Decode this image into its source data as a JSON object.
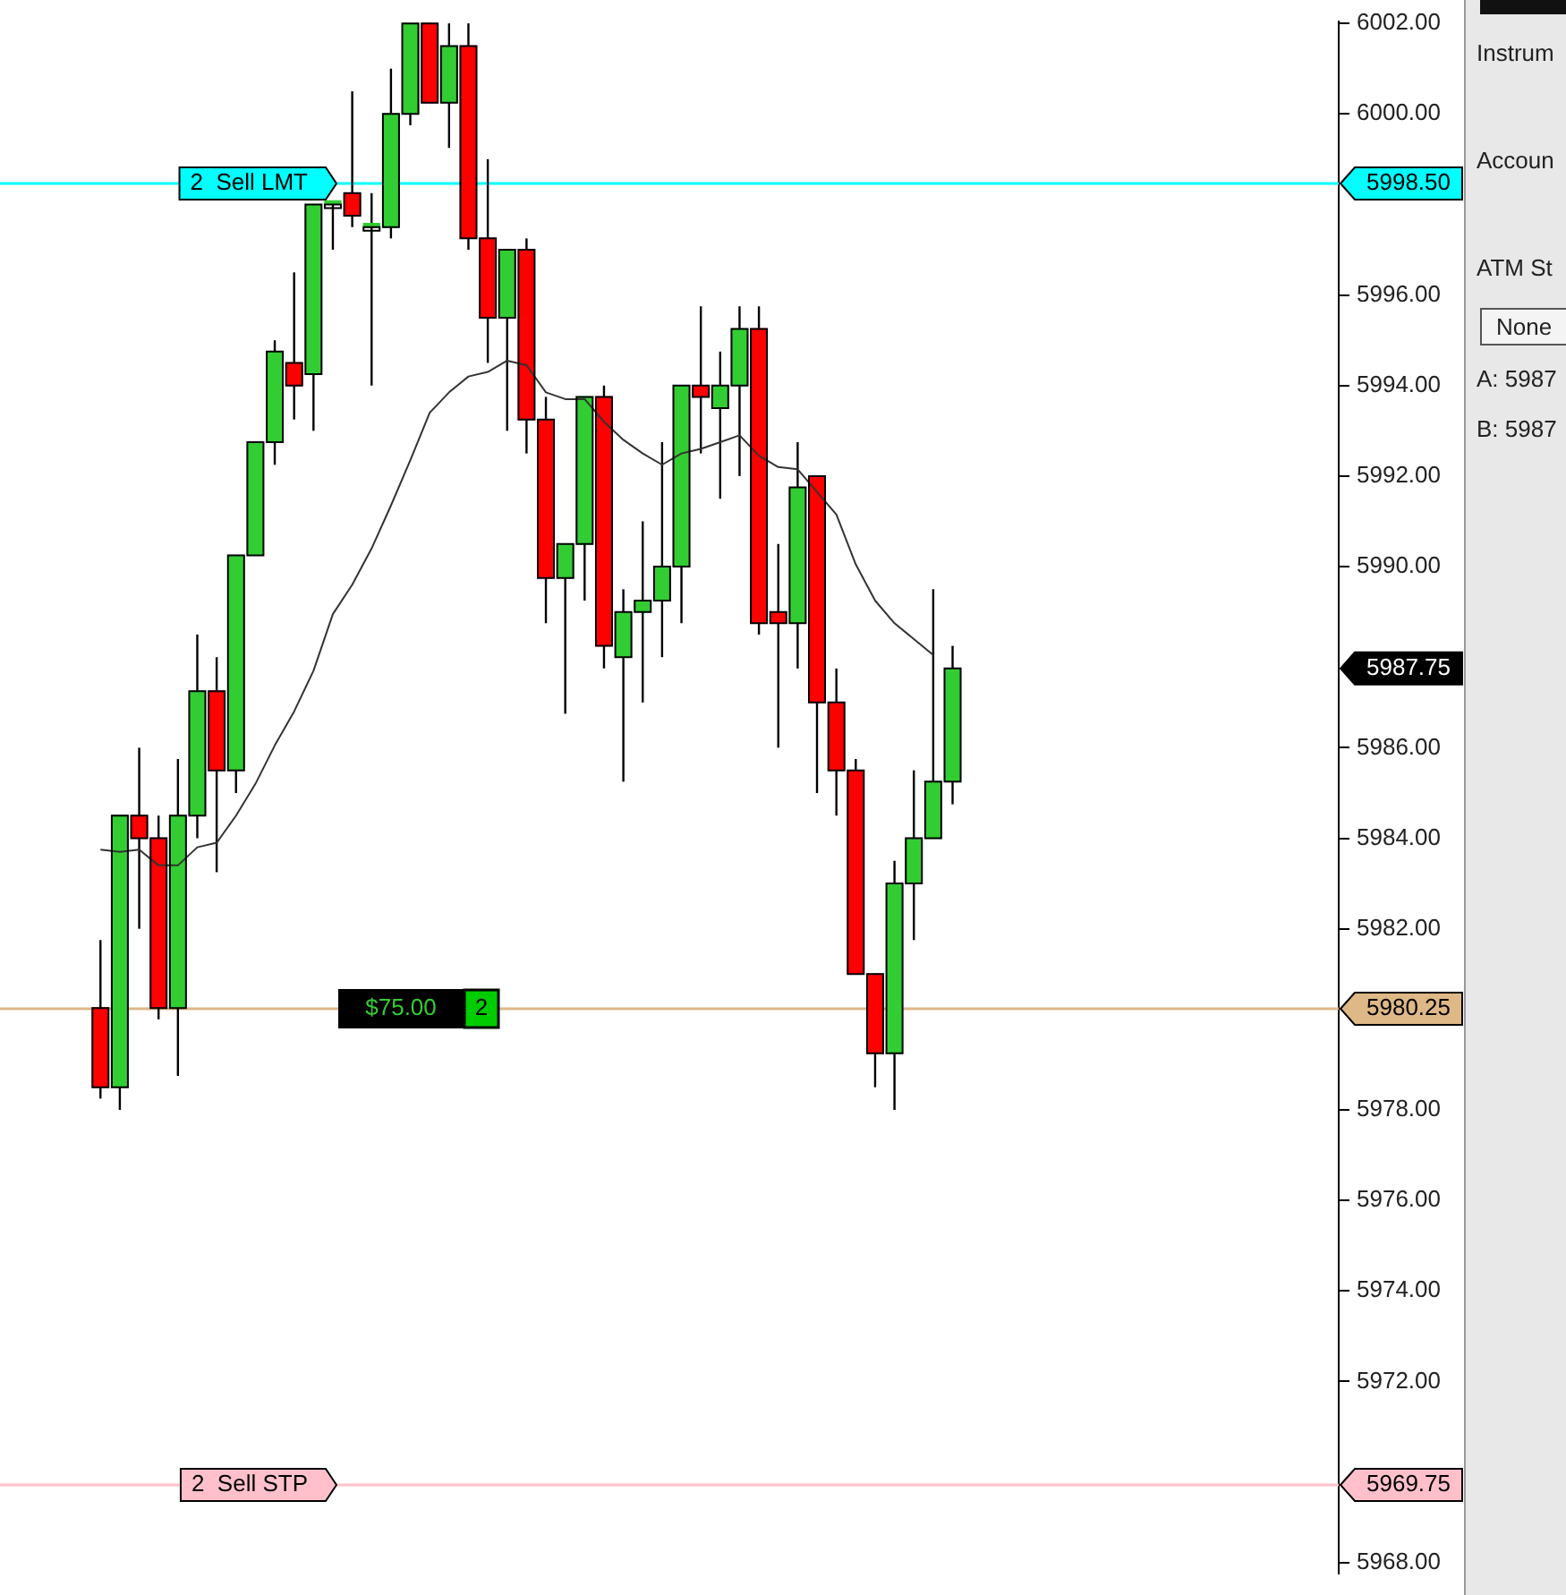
{
  "chart_data": {
    "type": "candlestick",
    "categories": [
      null,
      null,
      null,
      null,
      null,
      null,
      null,
      null,
      null,
      null,
      null,
      null,
      null,
      null,
      null,
      null,
      null,
      null,
      null,
      null,
      null,
      null,
      null,
      null,
      null,
      null,
      null,
      null,
      null,
      null,
      null,
      null,
      null,
      null,
      null,
      null,
      null,
      null,
      null,
      null,
      null,
      null,
      null,
      null,
      null
    ],
    "ohlc": [
      [
        5980.25,
        5981.75,
        5978.25,
        5978.5
      ],
      [
        5978.5,
        5984.5,
        5978,
        5984.5
      ],
      [
        5984.5,
        5986,
        5982,
        5984
      ],
      [
        5984,
        5984.5,
        5980,
        5980.25
      ],
      [
        5980.25,
        5985.75,
        5978.75,
        5984.5
      ],
      [
        5984.5,
        5988.5,
        5984,
        5987.25
      ],
      [
        5987.25,
        5988,
        5983.25,
        5985.5
      ],
      [
        5985.5,
        5990.25,
        5985,
        5990.25
      ],
      [
        5990.25,
        5992.75,
        5990.25,
        5992.75
      ],
      [
        5992.75,
        5995,
        5992.25,
        5994.75
      ],
      [
        5994.5,
        5996.5,
        5993.25,
        5994
      ],
      [
        5994.25,
        5998,
        5993,
        5998
      ],
      [
        5998,
        5998,
        5997,
        5998
      ],
      [
        5998.25,
        6000.5,
        5997.5,
        5997.75
      ],
      [
        5997.5,
        5998.25,
        5994,
        5997.5
      ],
      [
        5997.5,
        6001,
        5997.25,
        6000
      ],
      [
        6000,
        6002,
        5999.75,
        6002
      ],
      [
        6002,
        6002,
        6000.25,
        6000.25
      ],
      [
        6000.25,
        6002,
        5999.25,
        6001.5
      ],
      [
        6001.5,
        6002,
        5997,
        5997.25
      ],
      [
        5997.25,
        5999,
        5994.5,
        5995.5
      ],
      [
        5995.5,
        5997,
        5993,
        5997
      ],
      [
        5997,
        5997.25,
        5992.5,
        5993.25
      ],
      [
        5993.25,
        5993.75,
        5988.75,
        5989.75
      ],
      [
        5989.75,
        5990.5,
        5986.75,
        5990.5
      ],
      [
        5990.5,
        5993.75,
        5989.25,
        5993.75
      ],
      [
        5993.75,
        5994,
        5987.75,
        5988.25
      ],
      [
        5988,
        5989.5,
        5985.25,
        5989
      ],
      [
        5989,
        5991,
        5987,
        5989.25
      ],
      [
        5989.25,
        5992.75,
        5988,
        5990
      ],
      [
        5990,
        5994,
        5988.75,
        5994
      ],
      [
        5994,
        5995.75,
        5992.5,
        5993.75
      ],
      [
        5993.5,
        5994.75,
        5991.5,
        5994
      ],
      [
        5994,
        5995.75,
        5992,
        5995.25
      ],
      [
        5995.25,
        5995.75,
        5988.5,
        5988.75
      ],
      [
        5989,
        5990.5,
        5986,
        5988.75
      ],
      [
        5988.75,
        5992.75,
        5987.75,
        5991.75
      ],
      [
        5992,
        5992,
        5985,
        5987
      ],
      [
        5987,
        5987.75,
        5984.5,
        5985.5
      ],
      [
        5985.5,
        5985.75,
        5981,
        5981
      ],
      [
        5981,
        5981,
        5978.5,
        5979.25
      ],
      [
        5979.25,
        5983.5,
        5978,
        5983
      ],
      [
        5983,
        5985.5,
        5981.75,
        5984
      ],
      [
        5984,
        5989.5,
        5984,
        5985.25
      ],
      [
        5985.25,
        5988.25,
        5984.75,
        5987.75
      ]
    ],
    "colors": [
      "#ff0000",
      "#32cd32",
      "#ff0000",
      "#ff0000",
      "#32cd32",
      "#32cd32",
      "#ff0000",
      "#32cd32",
      "#32cd32",
      "#32cd32",
      "#ff0000",
      "#32cd32",
      "#32cd32",
      "#ff0000",
      "#32cd32",
      "#32cd32",
      "#32cd32",
      "#ff0000",
      "#32cd32",
      "#ff0000",
      "#ff0000",
      "#32cd32",
      "#ff0000",
      "#ff0000",
      "#32cd32",
      "#32cd32",
      "#ff0000",
      "#32cd32",
      "#32cd32",
      "#32cd32",
      "#32cd32",
      "#ff0000",
      "#32cd32",
      "#32cd32",
      "#ff0000",
      "#ff0000",
      "#32cd32",
      "#ff0000",
      "#ff0000",
      "#ff0000",
      "#ff0000",
      "#32cd32",
      "#32cd32",
      "#32cd32",
      "#32cd32"
    ],
    "series": [
      {
        "type": "line",
        "color": "#333333",
        "values": [
          5983.75,
          5983.7,
          5983.75,
          5983.4,
          5983.4,
          5983.8,
          5983.9,
          5984.5,
          5985.2,
          5986.05,
          5986.8,
          5987.7,
          5988.95,
          5989.6,
          5990.4,
          5991.35,
          5992.35,
          5993.4,
          5993.85,
          5994.2,
          5994.3,
          5994.55,
          5994.45,
          5993.85,
          5993.7,
          5993.7,
          5993.2,
          5992.8,
          5992.5,
          5992.25,
          5992.5,
          5992.6,
          5992.75,
          5992.9,
          5992.45,
          5992.2,
          5992.15,
          5991.65,
          5991.15,
          5990.05,
          5989.25,
          5988.75,
          5988.4,
          5988.05,
          null
        ]
      }
    ],
    "marker": "none",
    "line_style": "solid",
    "legend": false,
    "grid": false,
    "tick_labels": "y",
    "ylim": [
      5967.75,
      6002.05
    ],
    "yticks": [
      {
        "value": 5968,
        "label": "5968.00"
      },
      {
        "value": 5972,
        "label": "5972.00"
      },
      {
        "value": 5974,
        "label": "5974.00"
      },
      {
        "value": 5976,
        "label": "5976.00"
      },
      {
        "value": 5978,
        "label": "5978.00"
      },
      {
        "value": 5982,
        "label": "5982.00"
      },
      {
        "value": 5984,
        "label": "5984.00"
      },
      {
        "value": 5986,
        "label": "5986.00"
      },
      {
        "value": 5990,
        "label": "5990.00"
      },
      {
        "value": 5992,
        "label": "5992.00"
      },
      {
        "value": 5994,
        "label": "5994.00"
      },
      {
        "value": 5996,
        "label": "5996.00"
      },
      {
        "value": 6000,
        "label": "6000.00"
      },
      {
        "value": 6002,
        "label": "6002.00"
      }
    ],
    "ref_lines": [
      {
        "axis": "y",
        "value": 5998.5,
        "label": "5998.50",
        "color": "#00ffff"
      },
      {
        "axis": "y",
        "value": 5980.25,
        "label": "5980.25",
        "color": "#deb887"
      },
      {
        "axis": "y",
        "value": 5969.75,
        "label": "5969.75",
        "color": "#ffc0cb"
      }
    ],
    "annotations": [
      {
        "text": "2  Sell LMT",
        "y": 5998.5
      },
      {
        "text": "$75.00",
        "y": 5980.25
      },
      {
        "text": "2",
        "y": 5980.25
      },
      {
        "text": "2  Sell STP",
        "y": 5969.75
      },
      "5987.75",
      "Instrum",
      "Accoun",
      "ATM St",
      "None",
      "A:  5987",
      "B:  5987"
    ]
  }
}
